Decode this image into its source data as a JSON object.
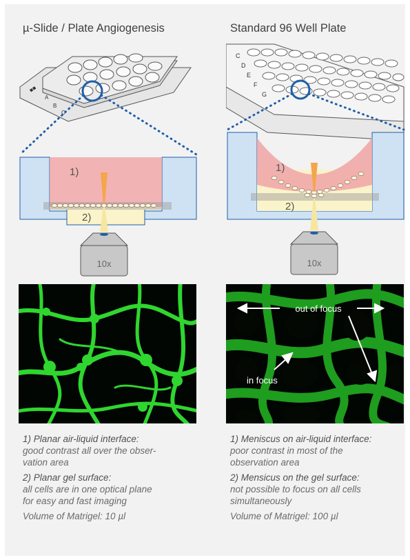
{
  "left": {
    "title": "µ-Slide / Plate Angiogenesis",
    "label_1": "1)",
    "label_2": "2)",
    "objective": "10x",
    "caption": {
      "h1": "1) Planar air-liquid interface:",
      "t1a": "good contrast all over the obser-",
      "t1b": "vation area",
      "h2": "2) Planar gel surface:",
      "t2a": "all cells are in one optical plane",
      "t2b": "for easy and fast imaging",
      "volume": "Volume of Matrigel: 10 µl"
    }
  },
  "right": {
    "title": "Standard 96 Well Plate",
    "label_1": "1)",
    "label_2": "2)",
    "objective": "10x",
    "annotations": {
      "out_of_focus": "out of focus",
      "in_focus": "in focus"
    },
    "caption": {
      "h1": "1) Meniscus on air-liquid interface:",
      "t1a": "poor contrast in most of the",
      "t1b": "observation area",
      "h2": "2) Mensicus on the gel surface:",
      "t2a": "not possible to focus on all cells",
      "t2b": "simultaneously",
      "volume": "Volume of Matrigel: 100 µl"
    }
  },
  "colors": {
    "well_blue": "#cfe2f3",
    "liquid_pink": "#f1a8a8",
    "gel_yellow": "#fbf3c9",
    "cell_green": "#2fd62f",
    "dotted_blue": "#1f5fa8"
  }
}
